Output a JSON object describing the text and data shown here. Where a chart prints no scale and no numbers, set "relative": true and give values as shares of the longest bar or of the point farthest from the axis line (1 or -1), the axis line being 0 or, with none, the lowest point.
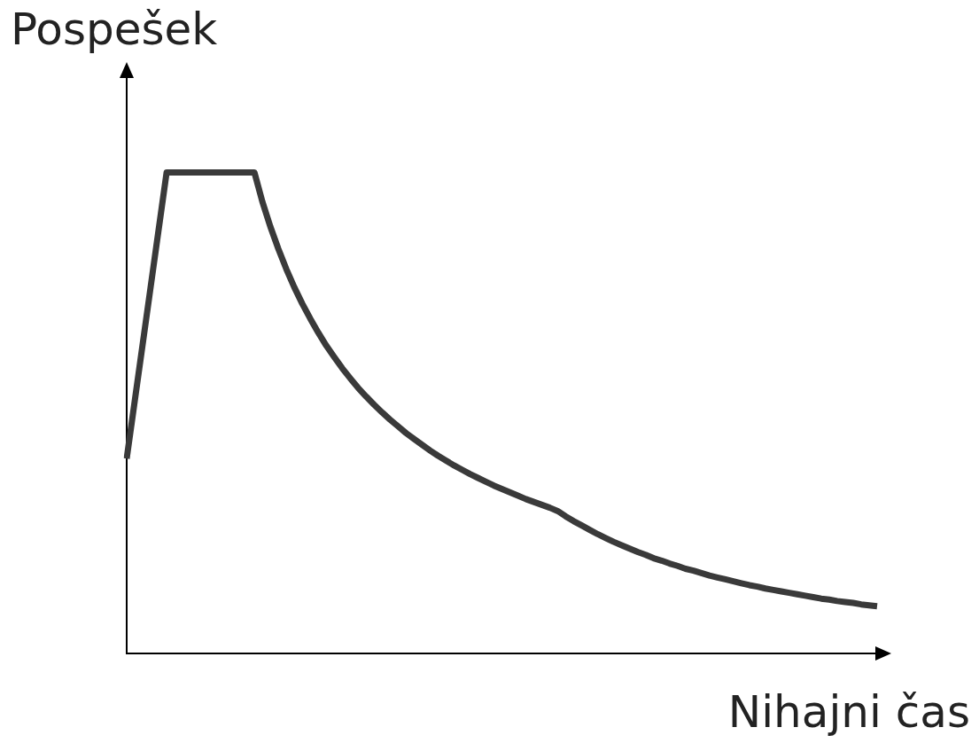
{
  "chart_data": {
    "type": "line",
    "relative": true,
    "xlabel": "Nihajni čas",
    "ylabel": "Pospešek",
    "categories": [
      null,
      null,
      null,
      null,
      null,
      null,
      null,
      null,
      null,
      null,
      null,
      null,
      null,
      null,
      null,
      null,
      null,
      null,
      null,
      null,
      null,
      null,
      null,
      null,
      null,
      null,
      null,
      null,
      null,
      null,
      null,
      null,
      null,
      null,
      null,
      null,
      null,
      null,
      null,
      null,
      null,
      null,
      null,
      null,
      null,
      null,
      null,
      null,
      null,
      null,
      null,
      null,
      null,
      null,
      null,
      null,
      null,
      null,
      null,
      null,
      null,
      null,
      null,
      null,
      null,
      null,
      null,
      null,
      null,
      null,
      null,
      null,
      null,
      null,
      null,
      null,
      null,
      null,
      null,
      null,
      null,
      null,
      null,
      null,
      null,
      null,
      null,
      null,
      null,
      null,
      null,
      null,
      null,
      null,
      null
    ],
    "series": [
      {
        "color": "#3a3a3a",
        "values": [
          0.405,
          0.524,
          0.643,
          0.762,
          0.881,
          1,
          1,
          1,
          1,
          1,
          1,
          1,
          1,
          1,
          1,
          1,
          1,
          0.939,
          0.887,
          0.841,
          0.799,
          0.761,
          0.727,
          0.696,
          0.667,
          0.64,
          0.616,
          0.593,
          0.572,
          0.552,
          0.534,
          0.517,
          0.501,
          0.486,
          0.472,
          0.458,
          0.446,
          0.434,
          0.422,
          0.411,
          0.401,
          0.391,
          0.382,
          0.373,
          0.365,
          0.357,
          0.349,
          0.342,
          0.335,
          0.328,
          0.321,
          0.315,
          0.309,
          0.303,
          0.296,
          0.285,
          0.275,
          0.266,
          0.257,
          0.248,
          0.24,
          0.232,
          0.225,
          0.218,
          0.211,
          0.205,
          0.198,
          0.193,
          0.187,
          0.182,
          0.176,
          0.172,
          0.167,
          0.162,
          0.158,
          0.154,
          0.15,
          0.146,
          0.142,
          0.139,
          0.135,
          0.132,
          0.129,
          0.126,
          0.123,
          0.12,
          0.117,
          0.114,
          0.112,
          0.109,
          0.107,
          0.105,
          0.102,
          0.1,
          0.098
        ]
      }
    ],
    "marker": "none",
    "line_style": "solid",
    "grid": false,
    "legend": false
  }
}
